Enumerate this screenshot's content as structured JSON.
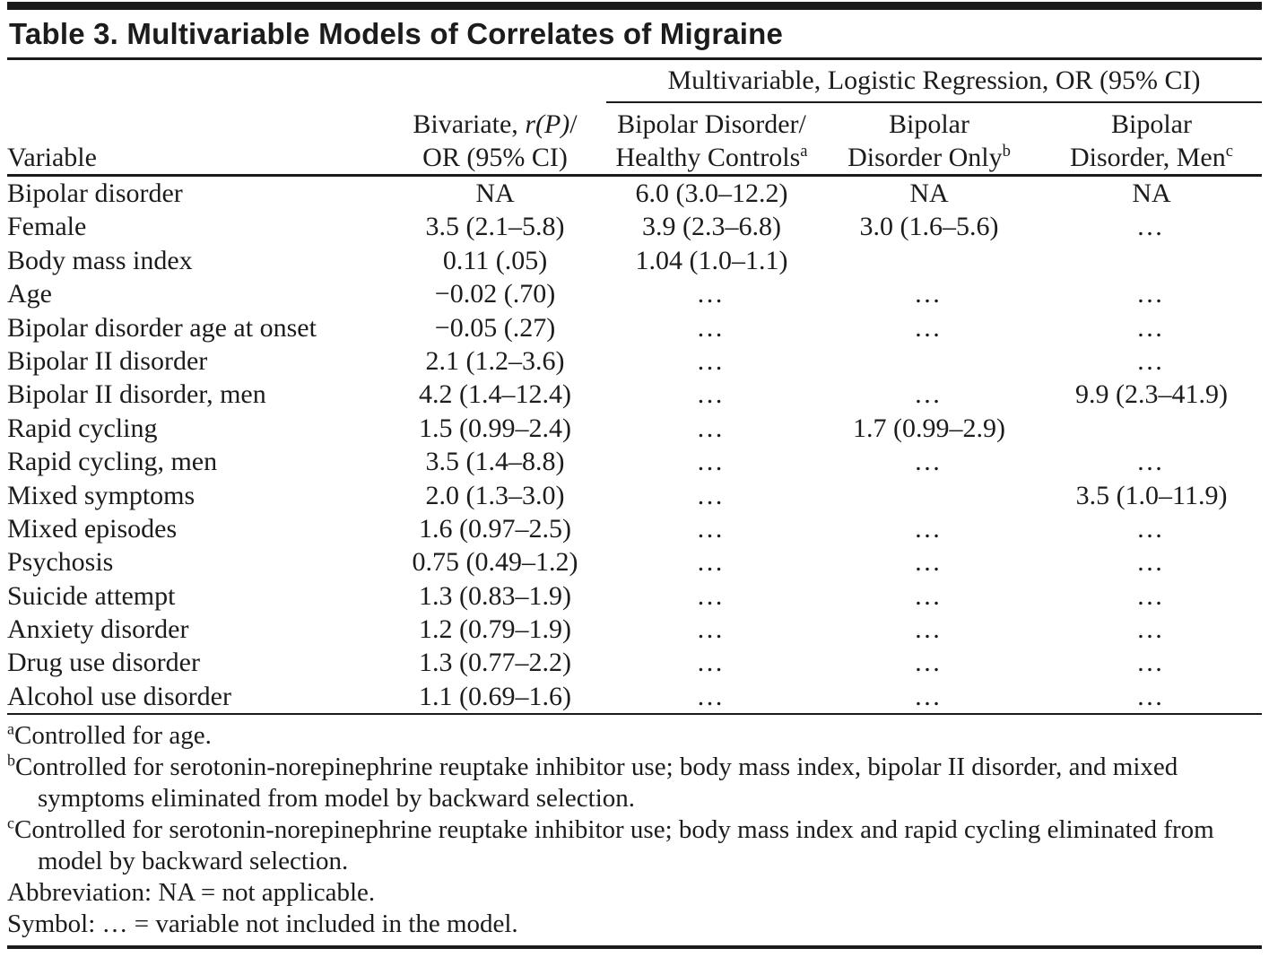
{
  "title": "Table 3. Multivariable Models of Correlates of Migraine",
  "table": {
    "spanner": "Multivariable, Logistic Regression, OR (95% CI)",
    "header": {
      "variable": "Variable",
      "bivariate": {
        "line1_pre": "Bivariate, ",
        "line1_italic": "r(P)",
        "line1_post": "/",
        "line2": "OR (95% CI)"
      },
      "bd_hc": {
        "line1": "Bipolar Disorder/",
        "line2": "Healthy Controls",
        "sup": "a"
      },
      "bd_only": {
        "line1": "Bipolar",
        "line2": "Disorder Only",
        "sup": "b"
      },
      "bd_men": {
        "line1": "Bipolar",
        "line2": "Disorder, Men",
        "sup": "c"
      }
    },
    "rows": [
      {
        "variable": "Bipolar disorder",
        "bivariate": "NA",
        "bd_hc": "6.0 (3.0–12.2)",
        "bd_only": "NA",
        "bd_men": "NA"
      },
      {
        "variable": "Female",
        "bivariate": "3.5 (2.1–5.8)",
        "bd_hc": "3.9 (2.3–6.8)",
        "bd_only": "3.0 (1.6–5.6)",
        "bd_men": "…"
      },
      {
        "variable": "Body mass index",
        "bivariate": "0.11 (.05)",
        "bd_hc": "1.04 (1.0–1.1)",
        "bd_only": "",
        "bd_men": ""
      },
      {
        "variable": "Age",
        "bivariate": "−0.02 (.70)",
        "bd_hc": "…",
        "bd_only": "…",
        "bd_men": "…"
      },
      {
        "variable": "Bipolar disorder age at onset",
        "bivariate": "−0.05 (.27)",
        "bd_hc": "…",
        "bd_only": "…",
        "bd_men": "…"
      },
      {
        "variable": "Bipolar II disorder",
        "bivariate": "2.1 (1.2–3.6)",
        "bd_hc": "…",
        "bd_only": "",
        "bd_men": "…"
      },
      {
        "variable": "Bipolar II disorder, men",
        "bivariate": "4.2 (1.4–12.4)",
        "bd_hc": "…",
        "bd_only": "…",
        "bd_men": "9.9 (2.3–41.9)"
      },
      {
        "variable": "Rapid cycling",
        "bivariate": "1.5 (0.99–2.4)",
        "bd_hc": "…",
        "bd_only": "1.7 (0.99–2.9)",
        "bd_men": ""
      },
      {
        "variable": "Rapid cycling, men",
        "bivariate": "3.5 (1.4–8.8)",
        "bd_hc": "…",
        "bd_only": "…",
        "bd_men": "…"
      },
      {
        "variable": "Mixed symptoms",
        "bivariate": "2.0 (1.3–3.0)",
        "bd_hc": "…",
        "bd_only": "",
        "bd_men": "3.5 (1.0–11.9)"
      },
      {
        "variable": "Mixed episodes",
        "bivariate": "1.6 (0.97–2.5)",
        "bd_hc": "…",
        "bd_only": "…",
        "bd_men": "…"
      },
      {
        "variable": "Psychosis",
        "bivariate": "0.75 (0.49–1.2)",
        "bd_hc": "…",
        "bd_only": "…",
        "bd_men": "…"
      },
      {
        "variable": "Suicide attempt",
        "bivariate": "1.3 (0.83–1.9)",
        "bd_hc": "…",
        "bd_only": "…",
        "bd_men": "…"
      },
      {
        "variable": "Anxiety disorder",
        "bivariate": "1.2 (0.79–1.9)",
        "bd_hc": "…",
        "bd_only": "…",
        "bd_men": "…"
      },
      {
        "variable": "Drug use disorder",
        "bivariate": "1.3 (0.77–2.2)",
        "bd_hc": "…",
        "bd_only": "…",
        "bd_men": "…"
      },
      {
        "variable": "Alcohol use disorder",
        "bivariate": "1.1 (0.69–1.6)",
        "bd_hc": "…",
        "bd_only": "…",
        "bd_men": "…"
      }
    ]
  },
  "footnotes": [
    {
      "sup": "a",
      "text": "Controlled for age."
    },
    {
      "sup": "b",
      "text": "Controlled for serotonin-norepinephrine reuptake inhibitor use; body mass index, bipolar II disorder, and mixed symptoms eliminated from model by backward selection."
    },
    {
      "sup": "c",
      "text": "Controlled for serotonin-norepinephrine reuptake inhibitor use; body mass index and rapid cycling eliminated from model by backward selection."
    },
    {
      "sup": "",
      "text": "Abbreviation: NA = not applicable."
    },
    {
      "sup": "",
      "text": "Symbol: … = variable not included in the model."
    }
  ]
}
